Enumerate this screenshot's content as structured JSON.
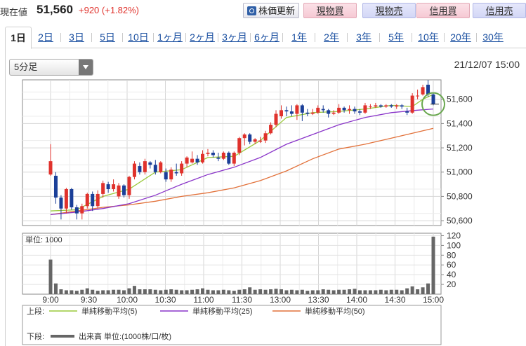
{
  "header": {
    "now_label": "現在値",
    "price": "51,560",
    "change": "+920 (+1.82%)",
    "update_button": "株価更新",
    "buttons": [
      {
        "label": "現物買",
        "kind": "buy"
      },
      {
        "label": "現物売",
        "kind": "sell"
      },
      {
        "label": "信用買",
        "kind": "buy"
      },
      {
        "label": "信用売",
        "kind": "sell"
      }
    ]
  },
  "tabs": [
    "1日",
    "2日",
    "3日",
    "5日",
    "10日",
    "1ヶ月",
    "2ヶ月",
    "3ヶ月",
    "6ヶ月",
    "1年",
    "2年",
    "3年",
    "5年",
    "10年",
    "20年",
    "30年"
  ],
  "active_tab": "1日",
  "interval_select": "5分足",
  "datetime": "21/12/07 15:00",
  "colors": {
    "up": "#e0322c",
    "down": "#1b3f98",
    "ma5": "#9ac83a",
    "ma25": "#8a35c9",
    "ma50": "#e2713a",
    "volume": "#666666",
    "highlight": "#6aa84f"
  },
  "chart_data": [
    {
      "type": "candlestick",
      "x_ticks": [
        "9:00",
        "9:30",
        "10:00",
        "10:30",
        "11:00",
        "11:30",
        "13:00",
        "13:30",
        "14:00",
        "14:30",
        "15:00"
      ],
      "ylim": [
        50560,
        51760
      ],
      "y_ticks": [
        50600,
        50800,
        51000,
        51200,
        51400,
        51600
      ],
      "y_tick_labels": [
        "50,600",
        "50,800",
        "51,000",
        "51,200",
        "51,400",
        "51,600"
      ],
      "candles": [
        [
          50980,
          51090,
          51230,
          50970
        ],
        [
          50970,
          50790,
          51000,
          50740
        ],
        [
          50790,
          50700,
          50810,
          50610
        ],
        [
          50700,
          50860,
          50870,
          50660
        ],
        [
          50860,
          50710,
          50870,
          50690
        ],
        [
          50710,
          50660,
          50730,
          50610
        ],
        [
          50660,
          50720,
          50740,
          50610
        ],
        [
          50720,
          50820,
          50830,
          50700
        ],
        [
          50820,
          50720,
          50840,
          50680
        ],
        [
          50720,
          50820,
          50850,
          50700
        ],
        [
          50820,
          50910,
          50930,
          50790
        ],
        [
          50900,
          50860,
          50920,
          50830
        ],
        [
          50860,
          50900,
          50940,
          50840
        ],
        [
          50800,
          50890,
          50910,
          50780
        ],
        [
          50890,
          50810,
          50900,
          50790
        ],
        [
          50810,
          50960,
          50970,
          50780
        ],
        [
          50960,
          51070,
          51090,
          50940
        ],
        [
          51050,
          51000,
          51080,
          50980
        ],
        [
          51000,
          51090,
          51110,
          50980
        ],
        [
          51080,
          51060,
          51090,
          51030
        ],
        [
          51060,
          51000,
          51100,
          50980
        ],
        [
          51000,
          51080,
          51090,
          50990
        ],
        [
          51000,
          50940,
          51030,
          50920
        ],
        [
          50940,
          51020,
          51040,
          50920
        ],
        [
          51000,
          50990,
          51070,
          50970
        ],
        [
          50990,
          51070,
          51090,
          50970
        ],
        [
          51070,
          51120,
          51130,
          51040
        ],
        [
          51080,
          51110,
          51170,
          51070
        ],
        [
          51110,
          51080,
          51140,
          51060
        ],
        [
          51080,
          51150,
          51180,
          51070
        ],
        [
          51150,
          51160,
          51190,
          51130
        ],
        [
          51160,
          51140,
          51180,
          51120
        ],
        [
          51120,
          51110,
          51160,
          51090
        ],
        [
          51110,
          51160,
          51170,
          51100
        ],
        [
          51160,
          51070,
          51170,
          51060
        ],
        [
          51070,
          51160,
          51170,
          51050
        ],
        [
          51160,
          51280,
          51290,
          51140
        ],
        [
          51280,
          51310,
          51320,
          51220
        ],
        [
          51310,
          51250,
          51320,
          51230
        ],
        [
          51250,
          51270,
          51280,
          51230
        ],
        [
          51250,
          51260,
          51290,
          51240
        ],
        [
          51260,
          51320,
          51340,
          51240
        ],
        [
          51320,
          51390,
          51410,
          51310
        ],
        [
          51390,
          51480,
          51510,
          51370
        ],
        [
          51460,
          51510,
          51550,
          51440
        ],
        [
          51510,
          51500,
          51540,
          51460
        ],
        [
          51500,
          51480,
          51550,
          51460
        ],
        [
          51480,
          51550,
          51560,
          51430
        ],
        [
          51550,
          51490,
          51560,
          51420
        ],
        [
          51490,
          51480,
          51520,
          51460
        ],
        [
          51480,
          51490,
          51520,
          51470
        ],
        [
          51490,
          51530,
          51550,
          51480
        ],
        [
          51520,
          51510,
          51550,
          51490
        ],
        [
          51510,
          51480,
          51520,
          51450
        ],
        [
          51480,
          51490,
          51510,
          51470
        ],
        [
          51490,
          51530,
          51560,
          51480
        ],
        [
          51530,
          51510,
          51540,
          51490
        ],
        [
          51510,
          51520,
          51550,
          51480
        ],
        [
          51520,
          51500,
          51540,
          51480
        ],
        [
          51500,
          51490,
          51520,
          51470
        ],
        [
          51490,
          51550,
          51570,
          51480
        ],
        [
          51540,
          51540,
          51560,
          51520
        ],
        [
          51540,
          51550,
          51570,
          51530
        ],
        [
          51550,
          51540,
          51560,
          51530
        ],
        [
          51540,
          51550,
          51560,
          51530
        ],
        [
          51550,
          51540,
          51560,
          51530
        ],
        [
          51540,
          51550,
          51560,
          51520
        ],
        [
          51550,
          51540,
          51560,
          51520
        ],
        [
          51500,
          51490,
          51530,
          51470
        ],
        [
          51490,
          51630,
          51650,
          51480
        ],
        [
          51630,
          51630,
          51680,
          51600
        ],
        [
          51640,
          51700,
          51720,
          51630
        ],
        [
          51720,
          51640,
          51760,
          51620
        ],
        [
          51640,
          51560,
          51650,
          51550
        ]
      ],
      "ma5": [
        [
          0,
          50680
        ],
        [
          5,
          50690
        ],
        [
          10,
          50800
        ],
        [
          15,
          50860
        ],
        [
          20,
          51000
        ],
        [
          25,
          51020
        ],
        [
          30,
          51120
        ],
        [
          35,
          51130
        ],
        [
          40,
          51260
        ],
        [
          45,
          51450
        ],
        [
          50,
          51490
        ],
        [
          55,
          51500
        ],
        [
          60,
          51520
        ],
        [
          65,
          51550
        ],
        [
          69,
          51540
        ],
        [
          71,
          51600
        ],
        [
          73,
          51640
        ]
      ],
      "ma25": [
        [
          0,
          50650
        ],
        [
          5,
          50670
        ],
        [
          10,
          50700
        ],
        [
          15,
          50740
        ],
        [
          20,
          50810
        ],
        [
          25,
          50900
        ],
        [
          30,
          50980
        ],
        [
          35,
          51040
        ],
        [
          40,
          51120
        ],
        [
          45,
          51230
        ],
        [
          50,
          51310
        ],
        [
          55,
          51390
        ],
        [
          60,
          51450
        ],
        [
          65,
          51490
        ],
        [
          70,
          51510
        ],
        [
          73,
          51520
        ]
      ],
      "ma50": [
        [
          0,
          50650
        ],
        [
          5,
          50680
        ],
        [
          10,
          50710
        ],
        [
          15,
          50730
        ],
        [
          20,
          50760
        ],
        [
          25,
          50800
        ],
        [
          30,
          50830
        ],
        [
          35,
          50870
        ],
        [
          40,
          50930
        ],
        [
          45,
          51010
        ],
        [
          50,
          51110
        ],
        [
          55,
          51190
        ],
        [
          60,
          51230
        ],
        [
          65,
          51280
        ],
        [
          70,
          51330
        ],
        [
          73,
          51360
        ]
      ],
      "volume_unit_label": "単位: 1000",
      "volume_ylim": [
        0,
        125
      ],
      "volume_ticks": [
        20,
        40,
        60,
        80,
        100,
        120
      ],
      "volume": [
        71,
        22,
        10,
        8,
        8,
        7,
        9,
        12,
        9,
        7,
        8,
        8,
        9,
        9,
        8,
        12,
        17,
        10,
        10,
        10,
        9,
        8,
        9,
        10,
        9,
        8,
        8,
        9,
        10,
        12,
        9,
        8,
        8,
        9,
        8,
        7,
        9,
        10,
        14,
        9,
        10,
        9,
        10,
        11,
        10,
        8,
        9,
        8,
        9,
        7,
        8,
        8,
        10,
        9,
        8,
        9,
        9,
        10,
        11,
        8,
        8,
        8,
        8,
        9,
        8,
        9,
        9,
        8,
        12,
        16,
        10,
        14,
        22,
        118
      ],
      "legend_top_label": "上段:",
      "legend_bottom_label": "下段:",
      "legend": [
        {
          "name": "単純移動平均(5)",
          "color": "#9ac83a"
        },
        {
          "name": "単純移動平均(25)",
          "color": "#8a35c9"
        },
        {
          "name": "単純移動平均(50)",
          "color": "#e2713a"
        }
      ],
      "volume_legend": "出来高 単位:(1000株/口/枚)"
    }
  ]
}
